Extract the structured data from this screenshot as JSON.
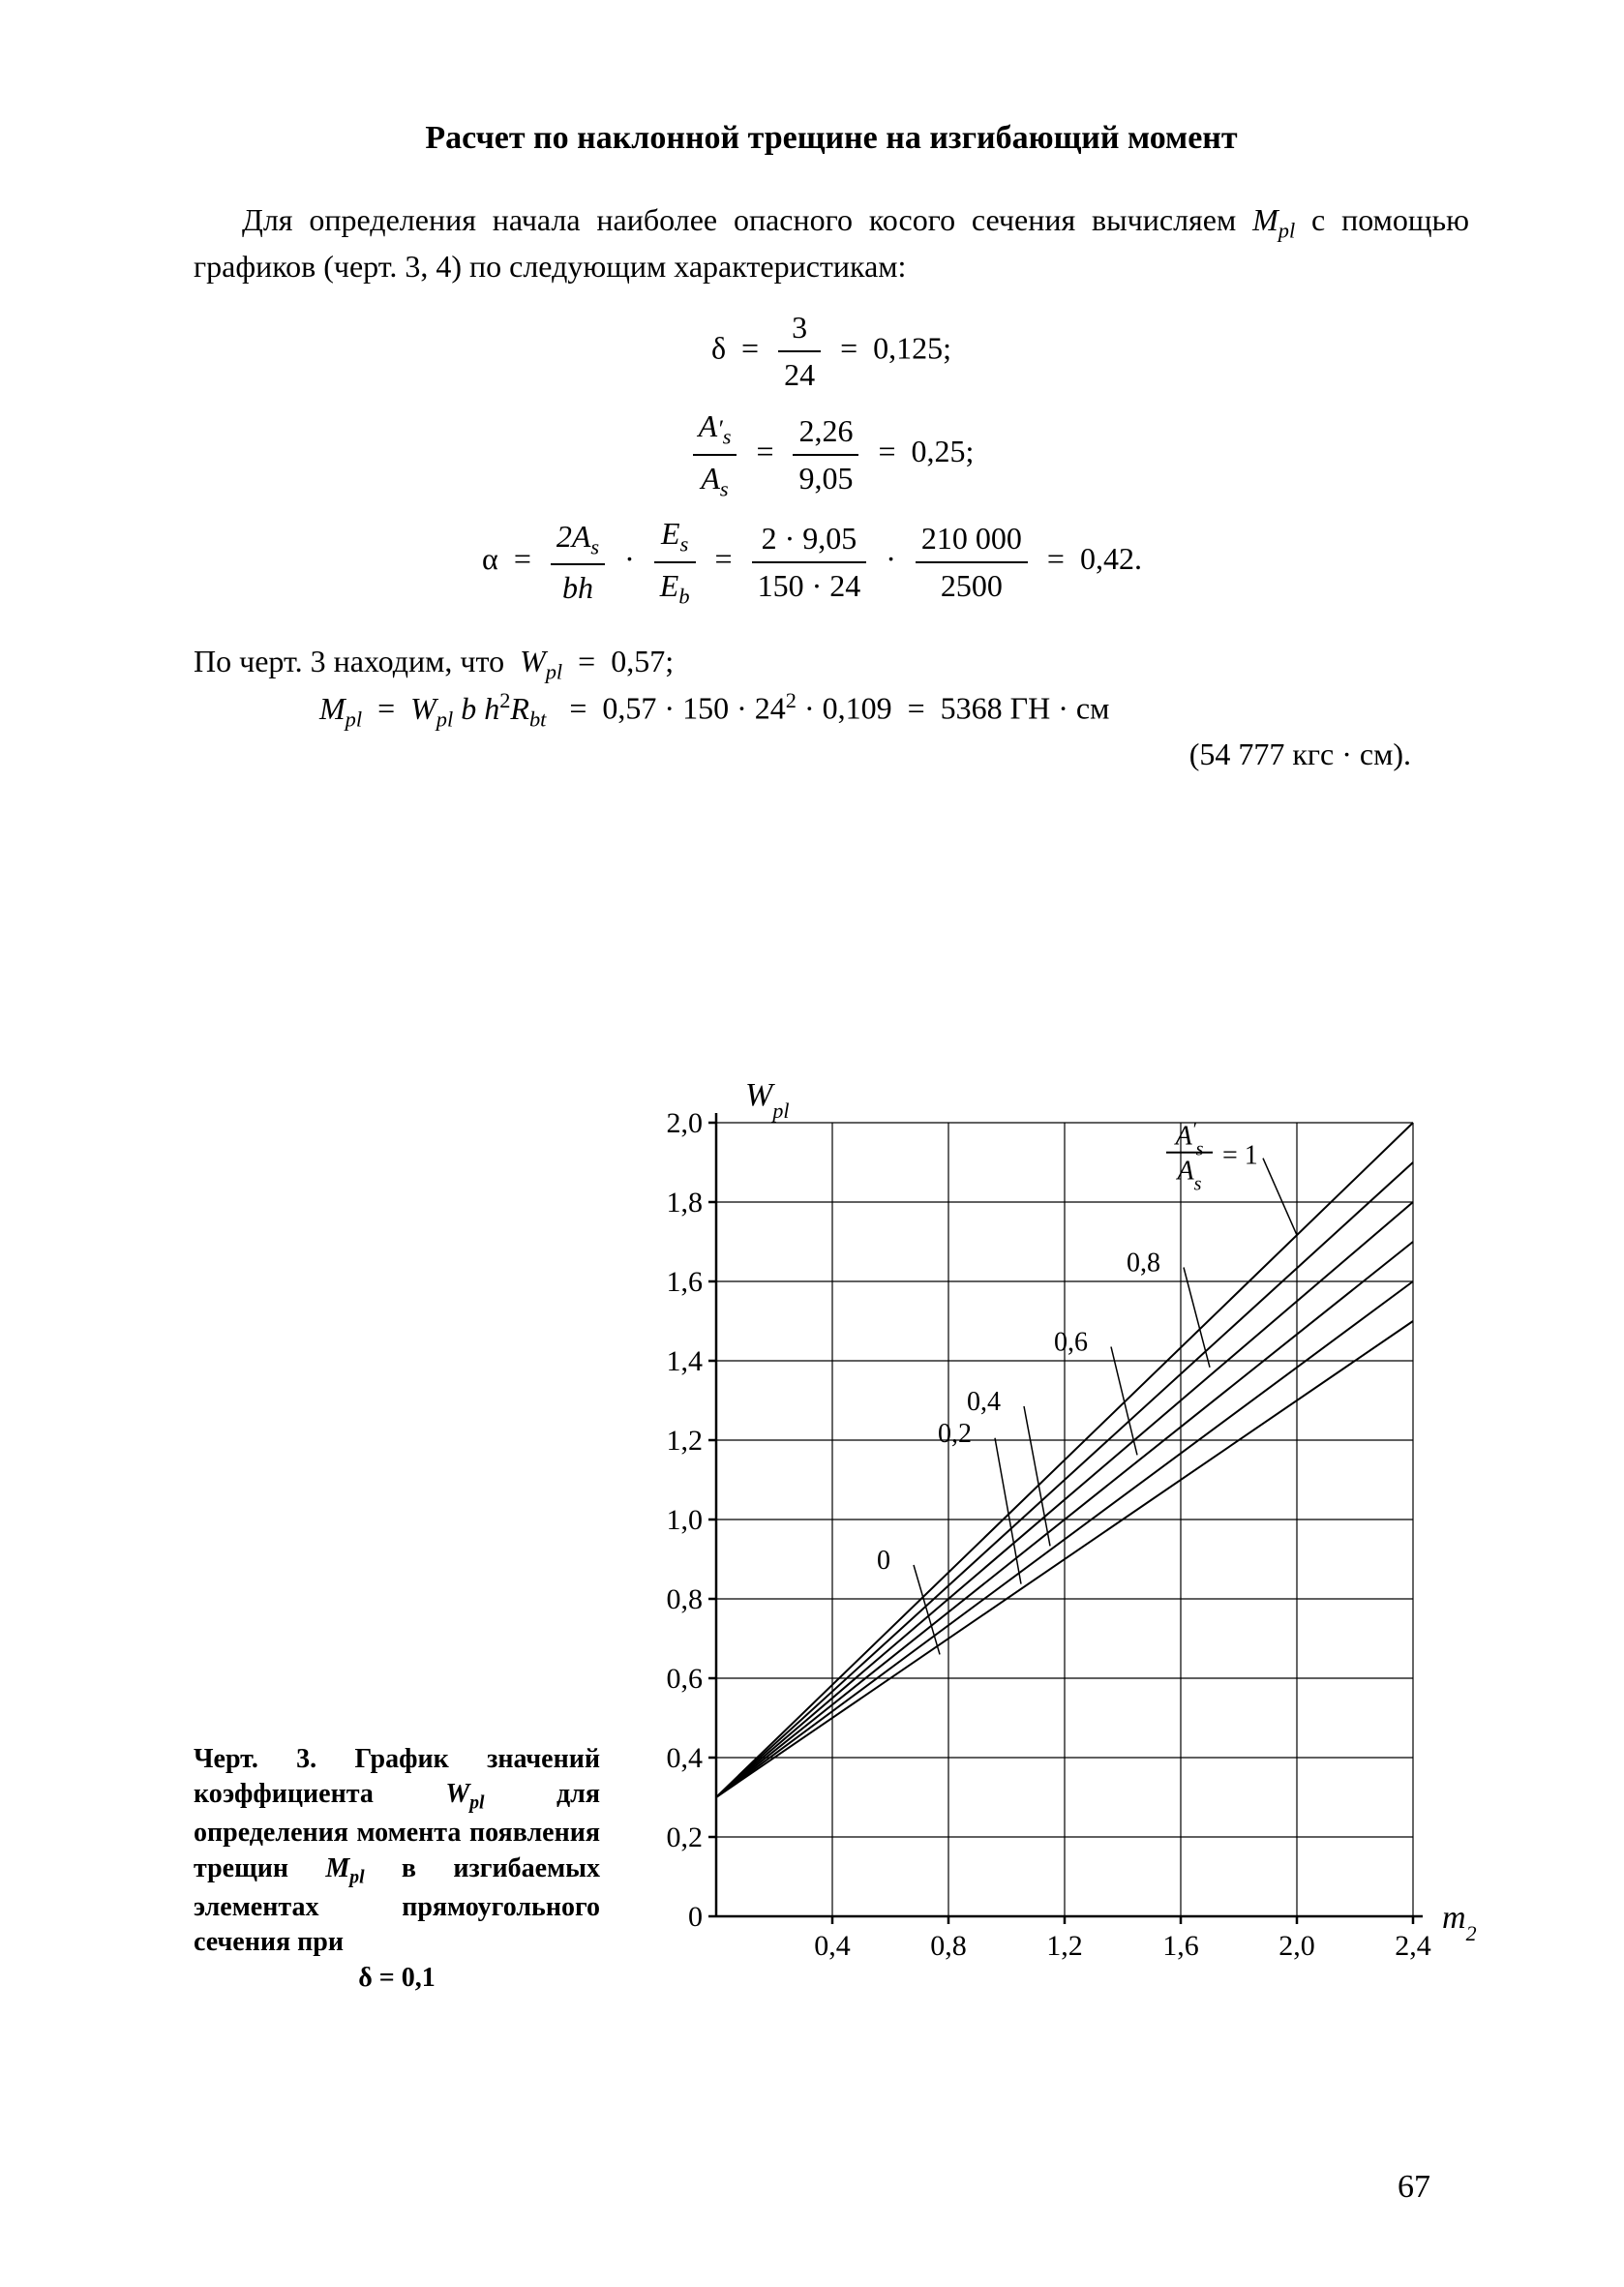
{
  "section_title": "Расчет по наклонной трещине на изгибающий момент",
  "intro_text": "Для определения начала наиболее опасного косого сечения вычисляем Mpl с помощью графиков (черт. 3, 4) по следующим характеристикам:",
  "equations": {
    "eq1": {
      "lhs_symbol": "δ",
      "num": "3",
      "den": "24",
      "rhs": "0,125"
    },
    "eq2": {
      "lhs_num": "A′s",
      "lhs_den": "As",
      "mid_num": "2,26",
      "mid_den": "9,05",
      "rhs": "0,25"
    },
    "eq3": {
      "lhs_symbol": "α",
      "f1_num": "2As",
      "f1_den": "bh",
      "f2_num": "Es",
      "f2_den": "Eb",
      "f3_num": "2 · 9,05",
      "f3_den": "150 · 24",
      "f4_num": "210 000",
      "f4_den": "2500",
      "rhs": "0,42"
    }
  },
  "result_line1": "По черт. 3 находим, что  Wpl  =  0,57;",
  "result_line2_lhs": "Mpl  =  Wpl b h² Rbt  =  0,57 · 150 · 24² · 0,109  =  5368 ГН · см",
  "result_line3": "(54 777 кгс · см).",
  "chart": {
    "type": "line",
    "x_axis_label": "m₂",
    "y_axis_label": "Wpl",
    "background_color": "#ffffff",
    "axis_color": "#000000",
    "grid_color": "#000000",
    "line_color": "#000000",
    "axis_width": 2.5,
    "grid_width": 1.2,
    "line_width": 2.0,
    "tick_font_size": 30,
    "label_font_size": 34,
    "annotation_font_size": 28,
    "xlim": [
      0,
      2.4
    ],
    "ylim": [
      0,
      2.0
    ],
    "xtick_values": [
      0.4,
      0.8,
      1.2,
      1.6,
      2.0,
      2.4
    ],
    "xtick_labels": [
      "0,4",
      "0,8",
      "1,2",
      "1,6",
      "2,0",
      "2,4"
    ],
    "ytick_values": [
      0,
      0.2,
      0.4,
      0.6,
      0.8,
      1.0,
      1.2,
      1.4,
      1.6,
      1.8,
      2.0
    ],
    "ytick_labels": [
      "0",
      "0,2",
      "0,4",
      "0,6",
      "0,8",
      "1,0",
      "1,2",
      "1,4",
      "1,6",
      "1,8",
      "2,0"
    ],
    "grid_x": [
      0.4,
      0.8,
      1.2,
      1.6,
      2.0,
      2.4
    ],
    "grid_y": [
      0.2,
      0.4,
      0.6,
      0.8,
      1.0,
      1.2,
      1.4,
      1.6,
      1.8,
      2.0
    ],
    "legend_text": "A′s / As = 1",
    "series": [
      {
        "label": "0",
        "y_at_0": 0.3,
        "y_at_2_4": 1.5
      },
      {
        "label": "0,2",
        "y_at_0": 0.3,
        "y_at_2_4": 1.6
      },
      {
        "label": "0,4",
        "y_at_0": 0.3,
        "y_at_2_4": 1.7
      },
      {
        "label": "0,6",
        "y_at_0": 0.3,
        "y_at_2_4": 1.8
      },
      {
        "label": "0,8",
        "y_at_0": 0.3,
        "y_at_2_4": 1.9
      },
      {
        "label": "1",
        "y_at_0": 0.3,
        "y_at_2_4": 2.0
      }
    ],
    "series_label_positions": [
      {
        "label": "0",
        "x": 0.62,
        "y": 0.9
      },
      {
        "label": "0,2",
        "x": 0.9,
        "y": 1.22
      },
      {
        "label": "0,4",
        "x": 1.0,
        "y": 1.3
      },
      {
        "label": "0,6",
        "x": 1.3,
        "y": 1.45
      },
      {
        "label": "0,8",
        "x": 1.55,
        "y": 1.65
      }
    ]
  },
  "caption": {
    "prefix": "Черт. 3. График значений коэффициента ",
    "symbol1": "Wpl",
    "mid1": " для определения момента появления трещин ",
    "symbol2": "Mpl",
    "mid2": " в изгибаемых элементах прямоугольного сечения при",
    "last": "δ = 0,1"
  },
  "page_number": "67"
}
